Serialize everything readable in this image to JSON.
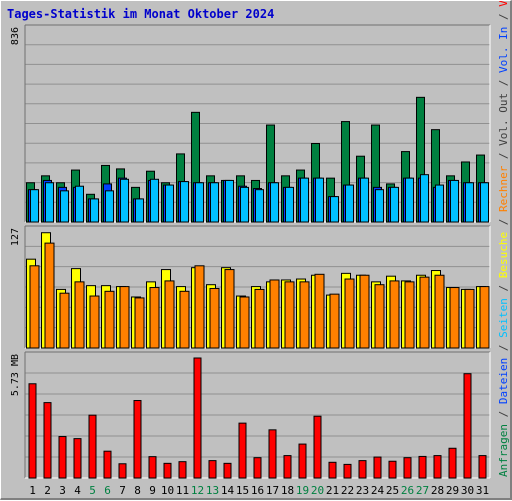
{
  "title": "Tages-Statistik im Monat Oktober 2024",
  "right_legend": [
    {
      "text": "Anfragen",
      "color": "#008040"
    },
    {
      "text": " / ",
      "color": "#404040"
    },
    {
      "text": "Dateien",
      "color": "#0040ff"
    },
    {
      "text": " / ",
      "color": "#404040"
    },
    {
      "text": "Seiten",
      "color": "#00c0ff"
    },
    {
      "text": " / ",
      "color": "#404040"
    },
    {
      "text": "Besuche",
      "color": "#ffff00"
    },
    {
      "text": " / ",
      "color": "#404040"
    },
    {
      "text": "Rechner",
      "color": "#ff8000"
    },
    {
      "text": " / ",
      "color": "#404040"
    },
    {
      "text": "Vol. Out",
      "color": "#404040"
    },
    {
      "text": " / ",
      "color": "#404040"
    },
    {
      "text": "Vol. In",
      "color": "#0040ff"
    },
    {
      "text": " / ",
      "color": "#404040"
    },
    {
      "text": "Volumen",
      "color": "#ff0000"
    }
  ],
  "chart_data": [
    {
      "type": "bar",
      "ymax_label": "836",
      "ymax": 836,
      "categories": [
        "1",
        "2",
        "3",
        "4",
        "5",
        "6",
        "7",
        "8",
        "9",
        "10",
        "11",
        "12",
        "13",
        "14",
        "15",
        "16",
        "17",
        "18",
        "19",
        "20",
        "21",
        "22",
        "23",
        "24",
        "25",
        "26",
        "27",
        "28",
        "29",
        "30",
        "31"
      ],
      "weekend_color": "#008040",
      "weekend_days": [
        "5",
        "6",
        "12",
        "13",
        "19",
        "20",
        "26",
        "27"
      ],
      "series": [
        {
          "name": "Anfragen",
          "color": "#008040",
          "values": [
            170,
            200,
            170,
            225,
            120,
            245,
            230,
            150,
            220,
            170,
            295,
            475,
            200,
            180,
            200,
            180,
            420,
            200,
            225,
            340,
            190,
            435,
            285,
            420,
            165,
            305,
            540,
            400,
            200,
            260,
            290
          ]
        },
        {
          "name": "Dateien",
          "color": "#0040ff",
          "values": [
            140,
            180,
            150,
            150,
            100,
            165,
            190,
            100,
            180,
            160,
            175,
            170,
            170,
            180,
            155,
            145,
            170,
            150,
            190,
            190,
            110,
            160,
            190,
            150,
            150,
            190,
            190,
            150,
            180,
            170,
            170
          ]
        },
        {
          "name": "Seiten",
          "color": "#00c0ff",
          "values": [
            140,
            170,
            135,
            155,
            100,
            135,
            185,
            100,
            185,
            160,
            175,
            170,
            170,
            180,
            150,
            140,
            170,
            150,
            190,
            190,
            110,
            160,
            190,
            140,
            150,
            190,
            205,
            160,
            180,
            170,
            170
          ]
        }
      ]
    },
    {
      "type": "bar",
      "ymax_label": "127",
      "ymax": 127,
      "categories": [
        "1",
        "2",
        "3",
        "4",
        "5",
        "6",
        "7",
        "8",
        "9",
        "10",
        "11",
        "12",
        "13",
        "14",
        "15",
        "16",
        "17",
        "18",
        "19",
        "20",
        "21",
        "22",
        "23",
        "24",
        "25",
        "26",
        "27",
        "28",
        "29",
        "30",
        "31"
      ],
      "series": [
        {
          "name": "Besuche",
          "color": "#ffff00",
          "values": [
            94,
            122,
            62,
            84,
            66,
            66,
            65,
            54,
            70,
            83,
            65,
            85,
            67,
            85,
            55,
            65,
            70,
            72,
            73,
            77,
            56,
            79,
            77,
            70,
            76,
            71,
            77,
            82,
            64,
            62,
            65
          ]
        },
        {
          "name": "Rechner",
          "color": "#ff8000",
          "values": [
            87,
            111,
            58,
            70,
            55,
            60,
            65,
            53,
            64,
            71,
            60,
            87,
            63,
            83,
            54,
            62,
            72,
            70,
            70,
            78,
            57,
            73,
            77,
            67,
            71,
            70,
            75,
            77,
            64,
            62,
            65
          ]
        }
      ]
    },
    {
      "type": "bar",
      "ymax_label": "5.73 MB",
      "ymax": 5.73,
      "categories": [
        "1",
        "2",
        "3",
        "4",
        "5",
        "6",
        "7",
        "8",
        "9",
        "10",
        "11",
        "12",
        "13",
        "14",
        "15",
        "16",
        "17",
        "18",
        "19",
        "20",
        "21",
        "22",
        "23",
        "24",
        "25",
        "26",
        "27",
        "28",
        "29",
        "30",
        "31"
      ],
      "series": [
        {
          "name": "Volumen",
          "color": "#ff0000",
          "values": [
            4.5,
            3.6,
            1.98,
            1.88,
            3.0,
            1.28,
            0.68,
            3.7,
            1.02,
            0.7,
            0.78,
            5.73,
            0.83,
            0.7,
            2.62,
            0.97,
            2.3,
            1.07,
            1.62,
            2.95,
            0.75,
            0.65,
            0.83,
            1.0,
            0.8,
            0.97,
            1.03,
            1.07,
            1.42,
            4.98,
            1.07
          ]
        }
      ]
    }
  ]
}
